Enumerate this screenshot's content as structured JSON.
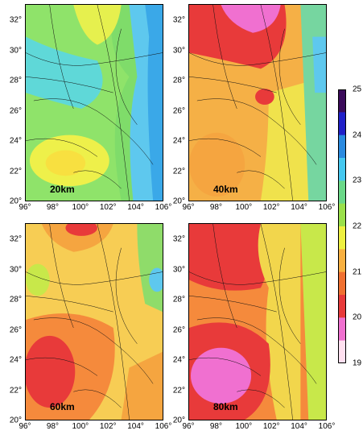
{
  "panels": [
    {
      "depth_label": "20km",
      "background": "#7fdc6a"
    },
    {
      "depth_label": "40km",
      "background": "#f5b046"
    },
    {
      "depth_label": "60km",
      "background": "#f7cd54"
    },
    {
      "depth_label": "80km",
      "background": "#f58a3c"
    }
  ],
  "axes": {
    "x_ticks": [
      "96°",
      "98°",
      "100°",
      "102°",
      "104°",
      "106°"
    ],
    "y_ticks": [
      "32°",
      "30°",
      "28°",
      "26°",
      "24°",
      "22°",
      "20°"
    ]
  },
  "colorbar": {
    "ticks": [
      "25",
      "24",
      "23",
      "22",
      "21",
      "20",
      "19"
    ],
    "colors": [
      "#3a0a5a",
      "#2020c8",
      "#2a8ae0",
      "#45c8f0",
      "#6ad888",
      "#9ae04a",
      "#eef040",
      "#f8b040",
      "#f07030",
      "#e83a3a",
      "#f070d0",
      "#ffe0f0"
    ]
  }
}
